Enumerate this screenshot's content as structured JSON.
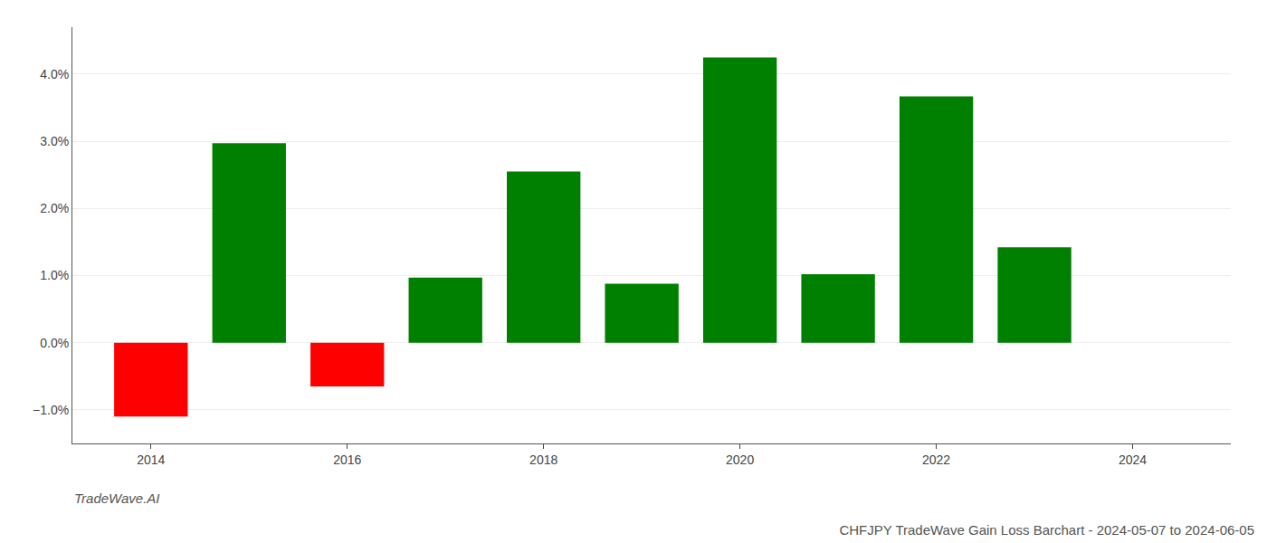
{
  "chart_data": {
    "type": "bar",
    "title": "CHFJPY TradeWave Gain Loss Barchart - 2024-05-07 to 2024-06-05",
    "annotations": [
      {
        "text": "TradeWave.AI"
      }
    ],
    "x": [
      2014,
      2015,
      2016,
      2017,
      2018,
      2019,
      2020,
      2021,
      2022,
      2023
    ],
    "values": [
      -1.1,
      2.97,
      -0.65,
      0.97,
      2.55,
      0.88,
      4.25,
      1.02,
      3.67,
      1.42
    ],
    "colors": [
      "#ff0000",
      "#008000",
      "#ff0000",
      "#008000",
      "#008000",
      "#008000",
      "#008000",
      "#008000",
      "#008000",
      "#008000"
    ],
    "xlim": [
      2013.2,
      2025.0
    ],
    "xticks": [
      2014,
      2016,
      2018,
      2020,
      2022,
      2024
    ],
    "ylim": [
      -1.5,
      4.7
    ],
    "yticks": [
      {
        "value": -1,
        "label": "−1.0%"
      },
      {
        "value": 0,
        "label": "0.0%"
      },
      {
        "value": 1,
        "label": "1.0%"
      },
      {
        "value": 2,
        "label": "2.0%"
      },
      {
        "value": 3,
        "label": "3.0%"
      },
      {
        "value": 4,
        "label": "4.0%"
      }
    ],
    "grid": true
  }
}
